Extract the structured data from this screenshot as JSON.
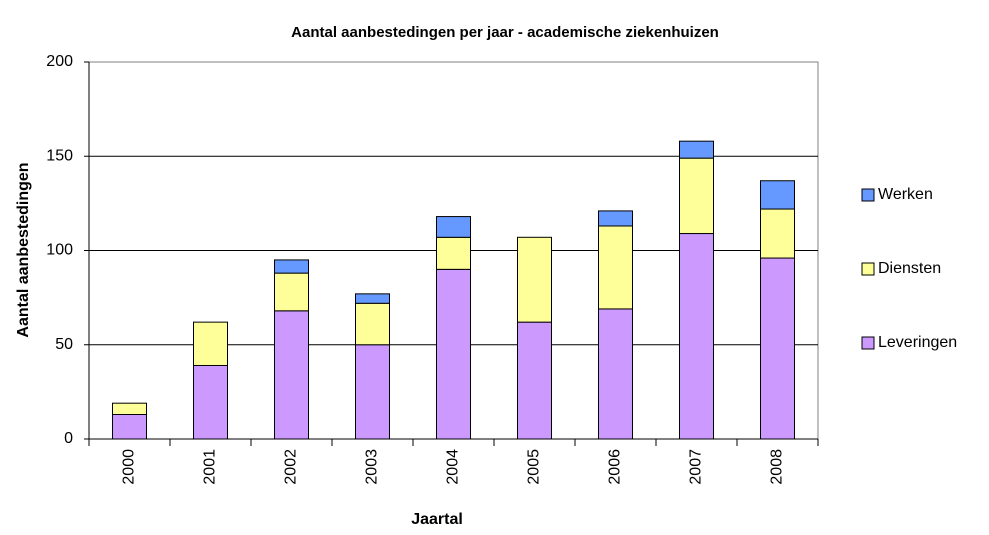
{
  "chart_data": {
    "type": "bar",
    "stacked": true,
    "title": "Aantal aanbestedingen per jaar - academische ziekenhuizen",
    "x_label": "Jaartal",
    "y_label": "Aantal aanbestedingen",
    "categories": [
      "2000",
      "2001",
      "2002",
      "2003",
      "2004",
      "2005",
      "2006",
      "2007",
      "2008"
    ],
    "series": [
      {
        "name": "Leveringen",
        "color": "#cc99ff",
        "values": [
          13,
          39,
          68,
          50,
          90,
          62,
          69,
          109,
          96
        ]
      },
      {
        "name": "Diensten",
        "color": "#ffff99",
        "values": [
          6,
          23,
          20,
          22,
          17,
          45,
          44,
          40,
          26
        ]
      },
      {
        "name": "Werken",
        "color": "#6699ff",
        "values": [
          0,
          0,
          7,
          5,
          11,
          0,
          8,
          9,
          15
        ]
      }
    ],
    "ylim": [
      0,
      200
    ],
    "yticks": [
      0,
      50,
      100,
      150,
      200
    ],
    "grid": true,
    "legend": "right"
  }
}
